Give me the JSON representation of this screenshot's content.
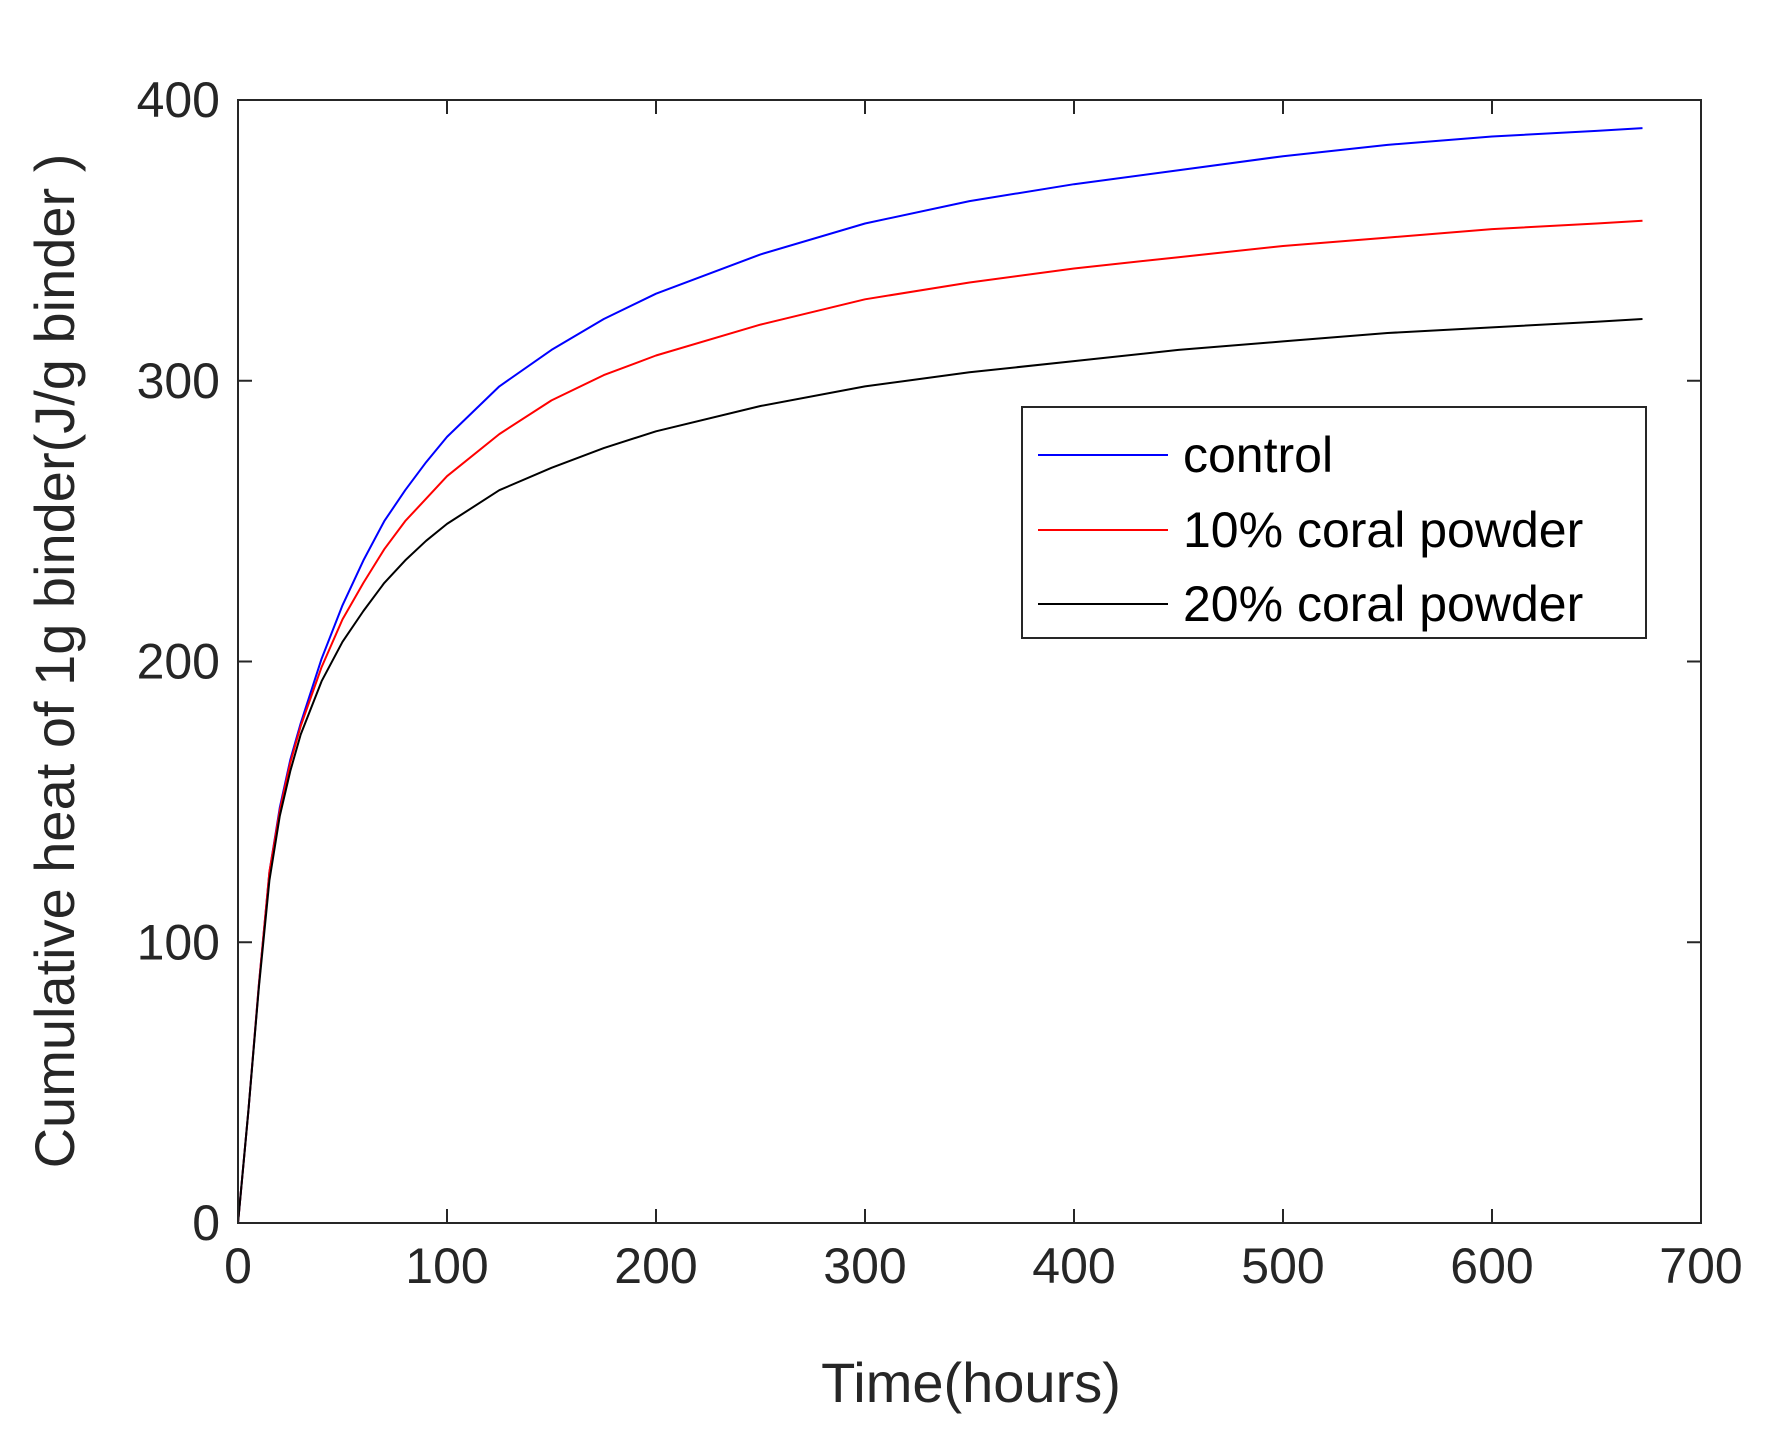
{
  "chart_data": {
    "type": "line",
    "title": "",
    "xlabel": "Time(hours)",
    "ylabel": "Cumulative  heat of 1g binder(J/g binder )",
    "xlim": [
      0,
      700
    ],
    "ylim": [
      0,
      400
    ],
    "xticks": [
      0,
      100,
      200,
      300,
      400,
      500,
      600,
      700
    ],
    "yticks": [
      0,
      100,
      200,
      300,
      400
    ],
    "xtick_labels": [
      "0",
      "100",
      "200",
      "300",
      "400",
      "500",
      "600",
      "700"
    ],
    "ytick_labels": [
      "0",
      "100",
      "200",
      "300",
      "400"
    ],
    "grid": false,
    "legend_position": "upper-right",
    "series": [
      {
        "name": "control",
        "color": "#0000ff",
        "x": [
          0,
          5,
          10,
          15,
          20,
          25,
          30,
          40,
          50,
          60,
          70,
          80,
          90,
          100,
          125,
          150,
          175,
          200,
          250,
          300,
          350,
          400,
          450,
          500,
          550,
          600,
          650,
          672
        ],
        "y": [
          0,
          40,
          85,
          125,
          148,
          165,
          178,
          201,
          220,
          236,
          250,
          261,
          271,
          280,
          298,
          311,
          322,
          331,
          345,
          356,
          364,
          370,
          375,
          380,
          384,
          387,
          389,
          390
        ]
      },
      {
        "name": "10% coral powder",
        "color": "#ff0000",
        "x": [
          0,
          5,
          10,
          15,
          20,
          25,
          30,
          40,
          50,
          60,
          70,
          80,
          90,
          100,
          125,
          150,
          175,
          200,
          250,
          300,
          350,
          400,
          450,
          500,
          550,
          600,
          650,
          672
        ],
        "y": [
          0,
          40,
          85,
          125,
          147,
          164,
          177,
          198,
          215,
          228,
          240,
          250,
          258,
          266,
          281,
          293,
          302,
          309,
          320,
          329,
          335,
          340,
          344,
          348,
          351,
          354,
          356,
          357
        ]
      },
      {
        "name": "20% coral powder",
        "color": "#000000",
        "x": [
          0,
          5,
          10,
          15,
          20,
          25,
          30,
          40,
          50,
          60,
          70,
          80,
          90,
          100,
          125,
          150,
          175,
          200,
          250,
          300,
          350,
          400,
          450,
          500,
          550,
          600,
          650,
          672
        ],
        "y": [
          0,
          40,
          84,
          122,
          145,
          161,
          174,
          193,
          207,
          218,
          228,
          236,
          243,
          249,
          261,
          269,
          276,
          282,
          291,
          298,
          303,
          307,
          311,
          314,
          317,
          319,
          321,
          322
        ]
      }
    ]
  }
}
